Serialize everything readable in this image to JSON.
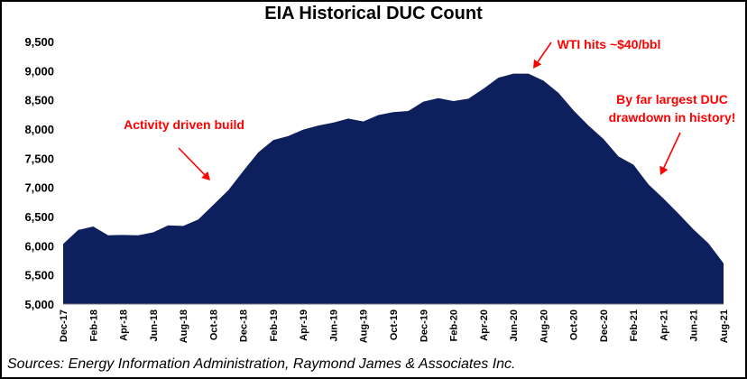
{
  "chart_data": {
    "type": "area",
    "title": "EIA Historical DUC Count",
    "xlabel": "",
    "ylabel": "",
    "ylim": [
      5000,
      9500
    ],
    "yticks": [
      5000,
      5500,
      6000,
      6500,
      7000,
      7500,
      8000,
      8500,
      9000,
      9500
    ],
    "ytick_labels": [
      "5,000",
      "5,500",
      "6,000",
      "6,500",
      "7,000",
      "7,500",
      "8,000",
      "8,500",
      "9,000",
      "9,500"
    ],
    "x_tick_labels": [
      "Dec-17",
      "Feb-18",
      "Apr-18",
      "Jun-18",
      "Aug-18",
      "Oct-18",
      "Dec-18",
      "Feb-19",
      "Apr-19",
      "Jun-19",
      "Aug-19",
      "Oct-19",
      "Dec-19",
      "Feb-20",
      "Apr-20",
      "Jun-20",
      "Aug-20",
      "Oct-20",
      "Dec-20",
      "Feb-21",
      "Apr-21",
      "Jun-21",
      "Aug-21"
    ],
    "categories": [
      "Dec-17",
      "Jan-18",
      "Feb-18",
      "Mar-18",
      "Apr-18",
      "May-18",
      "Jun-18",
      "Jul-18",
      "Aug-18",
      "Sep-18",
      "Oct-18",
      "Nov-18",
      "Dec-18",
      "Jan-19",
      "Feb-19",
      "Mar-19",
      "Apr-19",
      "May-19",
      "Jun-19",
      "Jul-19",
      "Aug-19",
      "Sep-19",
      "Oct-19",
      "Nov-19",
      "Dec-19",
      "Jan-20",
      "Feb-20",
      "Mar-20",
      "Apr-20",
      "May-20",
      "Jun-20",
      "Jul-20",
      "Aug-20",
      "Sep-20",
      "Oct-20",
      "Nov-20",
      "Dec-20",
      "Jan-21",
      "Feb-21",
      "Mar-21",
      "Apr-21",
      "May-21",
      "Jun-21",
      "Jul-21",
      "Aug-21"
    ],
    "series": [
      {
        "name": "DUC Count",
        "color": "#0d1f5c",
        "values": [
          6030,
          6270,
          6330,
          6180,
          6185,
          6180,
          6230,
          6350,
          6340,
          6450,
          6700,
          6950,
          7280,
          7600,
          7810,
          7880,
          7990,
          8060,
          8110,
          8180,
          8130,
          8240,
          8290,
          8310,
          8470,
          8530,
          8480,
          8520,
          8690,
          8880,
          8950,
          8950,
          8830,
          8620,
          8320,
          8060,
          7830,
          7530,
          7390,
          7050,
          6810,
          6550,
          6280,
          6040,
          5700
        ]
      }
    ],
    "annotations": [
      {
        "text": "Activity driven build"
      },
      {
        "text": "WTI hits ~$40/bbl"
      },
      {
        "text": "By far largest DUC"
      },
      {
        "text": "drawdown in history!"
      }
    ],
    "annotation_color": "#ff0000",
    "legend": "none",
    "grid": false
  },
  "source_text": "Sources: Energy Information Administration, Raymond James & Associates Inc."
}
